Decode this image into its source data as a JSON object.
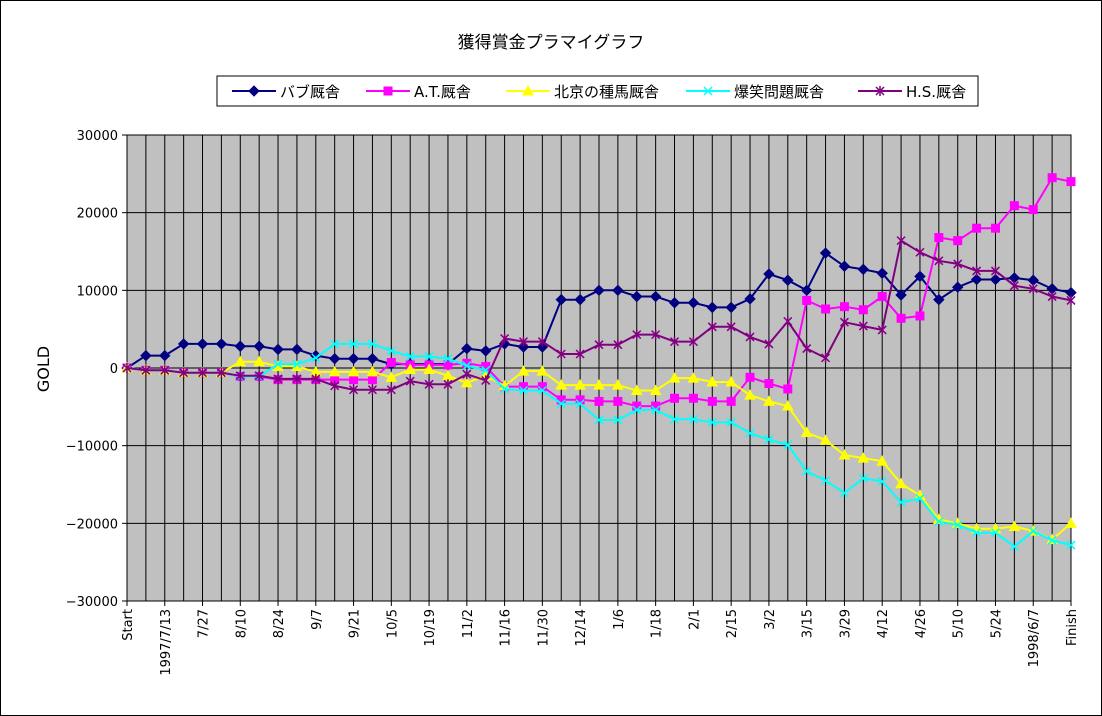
{
  "chart_data": {
    "type": "line",
    "title": "獲得賞金プラマイグラフ",
    "ylabel": "GOLD",
    "xlabel": "",
    "ylim": [
      -30000,
      30000
    ],
    "yticks": [
      30000,
      20000,
      10000,
      0,
      -10000,
      -20000,
      -30000
    ],
    "ytick_labels": [
      "30000",
      "20000",
      "10000",
      "0",
      "−10000",
      "−20000",
      "−30000"
    ],
    "x_tick_labels": [
      "Start",
      "1997/7/13",
      "7/27",
      "8/10",
      "8/24",
      "9/7",
      "9/21",
      "10/5",
      "10/19",
      "11/2",
      "11/16",
      "11/30",
      "12/14",
      "1/6",
      "1/18",
      "2/1",
      "2/15",
      "3/2",
      "3/15",
      "3/29",
      "4/12",
      "4/26",
      "5/10",
      "5/24",
      "1998/6/7",
      "Finish"
    ],
    "grid": true,
    "plot_background": "#c0c0c0",
    "legend_position": "top",
    "series": [
      {
        "name": "バブ厩舎",
        "color": "#000080",
        "marker": "diamond",
        "values": [
          0,
          1600,
          1600,
          3100,
          3100,
          3100,
          2800,
          2800,
          2400,
          2400,
          1600,
          1200,
          1200,
          1200,
          500,
          500,
          500,
          500,
          2500,
          2200,
          3100,
          2700,
          2700,
          8800,
          8800,
          10000,
          10000,
          9200,
          9200,
          8400,
          8400,
          7800,
          7800,
          8900,
          12100,
          11300,
          10000,
          14800,
          13100,
          12700,
          12200,
          9400,
          11800,
          8800,
          10400,
          11400,
          11400,
          11600,
          11300,
          10200,
          9700
        ]
      },
      {
        "name": "A.T.厩舎",
        "color": "#ff00ff",
        "marker": "square",
        "values": [
          0,
          -300,
          -300,
          -600,
          -600,
          -600,
          -1100,
          -1100,
          -1500,
          -1500,
          -1500,
          -1500,
          -1500,
          -1500,
          700,
          400,
          400,
          400,
          600,
          200,
          -2400,
          -2400,
          -2400,
          -4100,
          -4100,
          -4300,
          -4300,
          -4900,
          -4900,
          -3900,
          -3900,
          -4300,
          -4300,
          -1200,
          -2000,
          -2700,
          8700,
          7600,
          7900,
          7500,
          9200,
          6400,
          6700,
          16800,
          16400,
          18000,
          18000,
          20900,
          20400,
          24500,
          24000
        ]
      },
      {
        "name": "北京の種馬厩舎",
        "color": "#ffff00",
        "marker": "triangle",
        "values": [
          0,
          -300,
          -300,
          -600,
          -600,
          -600,
          800,
          800,
          200,
          200,
          -500,
          -500,
          -500,
          -500,
          -1200,
          -200,
          -200,
          -1000,
          -1900,
          -1000,
          -2300,
          -400,
          -400,
          -2200,
          -2200,
          -2200,
          -2200,
          -2900,
          -2900,
          -1300,
          -1300,
          -1800,
          -1800,
          -3500,
          -4300,
          -4900,
          -8300,
          -9300,
          -11200,
          -11600,
          -12000,
          -14900,
          -16400,
          -19500,
          -20000,
          -20700,
          -20700,
          -20400,
          -21000,
          -22100,
          -20000
        ]
      },
      {
        "name": "爆笑問題厩舎",
        "color": "#00ffff",
        "marker": "x",
        "values": [
          0,
          -300,
          -300,
          -600,
          -600,
          -600,
          -1100,
          -1100,
          500,
          500,
          1300,
          3100,
          3100,
          3100,
          2200,
          1500,
          1500,
          1200,
          300,
          -300,
          -2700,
          -2900,
          -2900,
          -4600,
          -4600,
          -6700,
          -6700,
          -5400,
          -5400,
          -6600,
          -6600,
          -7000,
          -7000,
          -8400,
          -9200,
          -9900,
          -13300,
          -14500,
          -16100,
          -14200,
          -14600,
          -17300,
          -16800,
          -19800,
          -20200,
          -21200,
          -21200,
          -23000,
          -21000,
          -22200,
          -22800
        ]
      },
      {
        "name": "H.S.厩舎",
        "color": "#800080",
        "marker": "star",
        "values": [
          0,
          -300,
          -300,
          -600,
          -600,
          -600,
          -1000,
          -1000,
          -1400,
          -1400,
          -1400,
          -2300,
          -2800,
          -2800,
          -2800,
          -1700,
          -2100,
          -2100,
          -800,
          -1600,
          3800,
          3400,
          3400,
          1800,
          1800,
          3000,
          3000,
          4300,
          4300,
          3400,
          3400,
          5300,
          5300,
          4000,
          3100,
          6000,
          2500,
          1300,
          5900,
          5400,
          4900,
          16400,
          14900,
          13800,
          13400,
          12500,
          12500,
          10600,
          10200,
          9200,
          8700
        ]
      }
    ]
  }
}
